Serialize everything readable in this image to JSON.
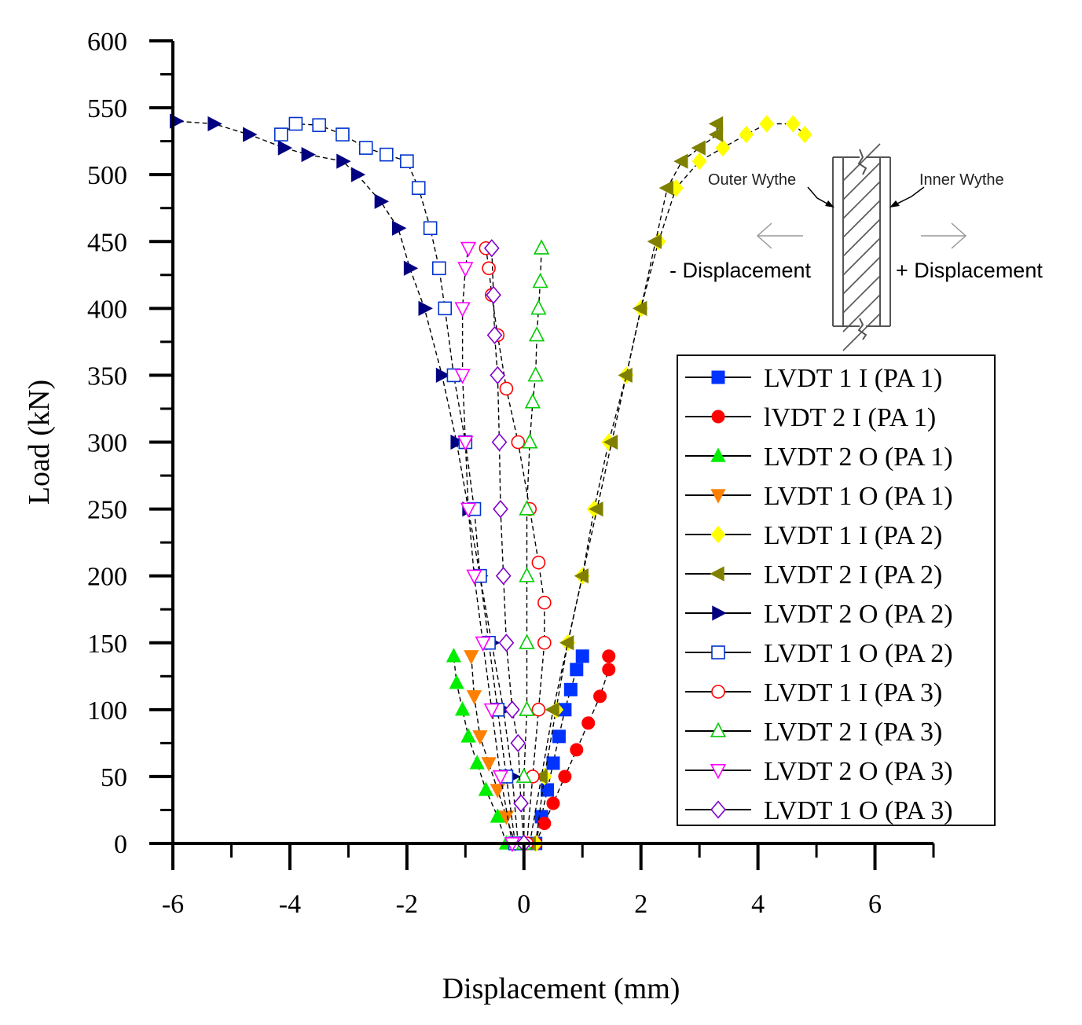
{
  "chart_data": {
    "type": "scatter",
    "title": "",
    "xlabel": "Displacement (mm)",
    "ylabel": "Load (kN)",
    "xlim": [
      -6,
      7
    ],
    "ylim": [
      0,
      600
    ],
    "x_ticks": [
      "-6",
      "-4",
      "-2",
      "0",
      "2",
      "4",
      "6"
    ],
    "x_tick_values": [
      -6,
      -4,
      -2,
      0,
      2,
      4,
      6
    ],
    "y_ticks": [
      "0",
      "50",
      "100",
      "150",
      "200",
      "250",
      "300",
      "350",
      "400",
      "450",
      "500",
      "550",
      "600"
    ],
    "y_tick_values": [
      0,
      50,
      100,
      150,
      200,
      250,
      300,
      350,
      400,
      450,
      500,
      550,
      600
    ],
    "grid": false,
    "legend_position": "right-middle",
    "series": [
      {
        "name": "LVDT 1 I (PA 1)",
        "color": "#0033ff",
        "marker": "square",
        "filled": true,
        "x": [
          0.2,
          0.3,
          0.4,
          0.5,
          0.6,
          0.7,
          0.8,
          0.9,
          1.0
        ],
        "y": [
          0,
          20,
          40,
          60,
          80,
          100,
          115,
          130,
          140
        ]
      },
      {
        "name": "lVDT 2 I (PA 1)",
        "color": "#ff0000",
        "marker": "circle",
        "filled": true,
        "x": [
          0.2,
          0.35,
          0.5,
          0.7,
          0.9,
          1.1,
          1.3,
          1.45,
          1.45
        ],
        "y": [
          0,
          15,
          30,
          50,
          70,
          90,
          110,
          130,
          140
        ]
      },
      {
        "name": "LVDT 2 O (PA 1)",
        "color": "#00ee00",
        "marker": "triangle-up",
        "filled": true,
        "x": [
          -0.3,
          -0.45,
          -0.65,
          -0.8,
          -0.95,
          -1.05,
          -1.15,
          -1.2
        ],
        "y": [
          0,
          20,
          40,
          60,
          80,
          100,
          120,
          140
        ]
      },
      {
        "name": "LVDT 1 O (PA 1)",
        "color": "#ff8000",
        "marker": "triangle-down",
        "filled": true,
        "x": [
          -0.15,
          -0.3,
          -0.45,
          -0.6,
          -0.75,
          -0.85,
          -0.9
        ],
        "y": [
          0,
          20,
          40,
          60,
          80,
          110,
          140
        ]
      },
      {
        "name": "LVDT 1 I (PA 2)",
        "color": "#ffff00",
        "marker": "diamond",
        "filled": true,
        "x": [
          0.2,
          0.35,
          0.55,
          0.75,
          1.0,
          1.2,
          1.45,
          1.75,
          2.0,
          2.3,
          2.6,
          3.0,
          3.4,
          3.8,
          4.15,
          4.6,
          4.8
        ],
        "y": [
          0,
          50,
          100,
          150,
          200,
          250,
          300,
          350,
          400,
          450,
          490,
          510,
          520,
          530,
          538,
          538,
          530
        ]
      },
      {
        "name": "LVDT 2 I (PA 2)",
        "color": "#808000",
        "marker": "triangle-left",
        "filled": true,
        "x": [
          0.1,
          0.3,
          0.5,
          0.75,
          1.0,
          1.25,
          1.5,
          1.75,
          2.0,
          2.25,
          2.45,
          2.7,
          3.0,
          3.3,
          3.3
        ],
        "y": [
          0,
          50,
          100,
          150,
          200,
          250,
          300,
          350,
          400,
          450,
          490,
          510,
          520,
          530,
          538
        ]
      },
      {
        "name": "LVDT 2 O (PA 2)",
        "color": "#000080",
        "marker": "triangle-right",
        "filled": true,
        "x": [
          -0.1,
          -0.2,
          -0.35,
          -0.55,
          -0.75,
          -0.95,
          -1.15,
          -1.4,
          -1.7,
          -1.95,
          -2.15,
          -2.45,
          -2.85,
          -3.1,
          -3.7,
          -4.1,
          -4.7,
          -5.3,
          -5.95
        ],
        "y": [
          0,
          50,
          100,
          150,
          200,
          250,
          300,
          350,
          400,
          430,
          460,
          480,
          500,
          510,
          515,
          520,
          530,
          538,
          540
        ]
      },
      {
        "name": "LVDT 1 O (PA 2)",
        "color": "#0033cc",
        "marker": "square",
        "filled": false,
        "x": [
          -0.15,
          -0.3,
          -0.45,
          -0.6,
          -0.75,
          -0.85,
          -1.0,
          -1.2,
          -1.35,
          -1.45,
          -1.6,
          -1.8,
          -2.0,
          -2.35,
          -2.7,
          -3.1,
          -3.5,
          -3.9,
          -4.15
        ],
        "y": [
          0,
          50,
          100,
          150,
          200,
          250,
          300,
          350,
          400,
          430,
          460,
          490,
          510,
          515,
          520,
          530,
          537,
          538,
          530
        ]
      },
      {
        "name": "LVDT 1 I (PA 3)",
        "color": "#ff0000",
        "marker": "circle",
        "filled": false,
        "x": [
          0.05,
          0.15,
          0.25,
          0.35,
          0.35,
          0.25,
          0.1,
          -0.1,
          -0.3,
          -0.45,
          -0.55,
          -0.6,
          -0.65
        ],
        "y": [
          0,
          50,
          100,
          150,
          180,
          210,
          250,
          300,
          340,
          380,
          410,
          430,
          445
        ]
      },
      {
        "name": "LVDT 2 I (PA 3)",
        "color": "#00cc00",
        "marker": "triangle-up",
        "filled": false,
        "x": [
          0,
          0.0,
          0.05,
          0.05,
          0.05,
          0.05,
          0.1,
          0.15,
          0.2,
          0.22,
          0.25,
          0.28,
          0.3
        ],
        "y": [
          0,
          50,
          100,
          150,
          200,
          250,
          300,
          330,
          350,
          380,
          400,
          420,
          445
        ]
      },
      {
        "name": "LVDT 2 O (PA 3)",
        "color": "#ff00ff",
        "marker": "triangle-down",
        "filled": false,
        "x": [
          -0.2,
          -0.4,
          -0.55,
          -0.7,
          -0.85,
          -0.95,
          -1.0,
          -1.05,
          -1.05,
          -1.0,
          -0.95
        ],
        "y": [
          0,
          50,
          100,
          150,
          200,
          250,
          300,
          350,
          400,
          430,
          445
        ]
      },
      {
        "name": "LVDT 1 O (PA 3)",
        "color": "#8000cc",
        "marker": "diamond",
        "filled": false,
        "x": [
          0,
          -0.05,
          -0.1,
          -0.2,
          -0.3,
          -0.35,
          -0.4,
          -0.42,
          -0.45,
          -0.5,
          -0.52,
          -0.55
        ],
        "y": [
          0,
          30,
          75,
          100,
          150,
          200,
          250,
          300,
          350,
          380,
          410,
          445
        ]
      }
    ],
    "annotations": {
      "outer_wythe": "Outer Wythe",
      "inner_wythe": "Inner Wythe",
      "neg_disp": "- Displacement",
      "pos_disp": "+ Displacement"
    }
  }
}
